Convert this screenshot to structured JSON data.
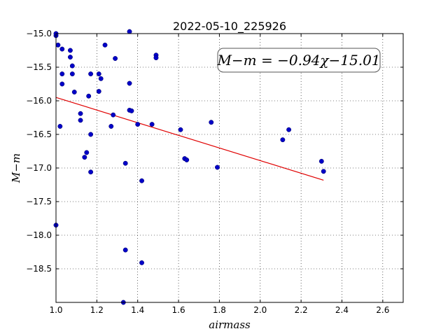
{
  "chart_data": {
    "type": "scatter",
    "title": "2022-05-10_225926",
    "xlabel": "airmass",
    "ylabel": "M−m",
    "xlim": [
      1.0,
      2.7
    ],
    "ylim": [
      -19.0,
      -15.0
    ],
    "y_inverted": true,
    "x_ticks": [
      "1.0",
      "1.2",
      "1.4",
      "1.6",
      "1.8",
      "2.0",
      "2.2",
      "2.4",
      "2.6"
    ],
    "y_ticks": [
      "−15.0",
      "−15.5",
      "−16.0",
      "−16.5",
      "−17.0",
      "−17.5",
      "−18.0",
      "−18.5"
    ],
    "grid": true,
    "annotation": "M−m = −0.94χ−15.01",
    "fit": {
      "slope": -0.94,
      "intercept": -15.01,
      "x_range": [
        1.0,
        2.31
      ],
      "color": "#e00000"
    },
    "point_color": "#0000c8",
    "points": [
      {
        "x": 1.0,
        "y": -15.03
      },
      {
        "x": 1.0,
        "y": -15.0
      },
      {
        "x": 1.01,
        "y": -15.17
      },
      {
        "x": 1.03,
        "y": -15.23
      },
      {
        "x": 1.07,
        "y": -15.25
      },
      {
        "x": 1.07,
        "y": -15.35
      },
      {
        "x": 1.08,
        "y": -15.48
      },
      {
        "x": 1.03,
        "y": -15.6
      },
      {
        "x": 1.08,
        "y": -15.6
      },
      {
        "x": 1.03,
        "y": -15.75
      },
      {
        "x": 1.09,
        "y": -15.87
      },
      {
        "x": 1.17,
        "y": -15.6
      },
      {
        "x": 1.21,
        "y": -15.6
      },
      {
        "x": 1.22,
        "y": -15.67
      },
      {
        "x": 1.24,
        "y": -15.17
      },
      {
        "x": 1.29,
        "y": -15.37
      },
      {
        "x": 1.36,
        "y": -14.97
      },
      {
        "x": 1.49,
        "y": -15.32
      },
      {
        "x": 1.49,
        "y": -15.36
      },
      {
        "x": 1.36,
        "y": -15.74
      },
      {
        "x": 1.21,
        "y": -15.86
      },
      {
        "x": 1.16,
        "y": -15.93
      },
      {
        "x": 1.12,
        "y": -16.19
      },
      {
        "x": 1.12,
        "y": -16.29
      },
      {
        "x": 1.02,
        "y": -16.38
      },
      {
        "x": 1.36,
        "y": -16.14
      },
      {
        "x": 1.37,
        "y": -16.15
      },
      {
        "x": 1.28,
        "y": -16.21
      },
      {
        "x": 1.27,
        "y": -16.38
      },
      {
        "x": 1.4,
        "y": -16.35
      },
      {
        "x": 1.47,
        "y": -16.35
      },
      {
        "x": 1.17,
        "y": -16.5
      },
      {
        "x": 1.15,
        "y": -16.77
      },
      {
        "x": 1.14,
        "y": -16.84
      },
      {
        "x": 1.34,
        "y": -16.93
      },
      {
        "x": 1.17,
        "y": -17.06
      },
      {
        "x": 1.42,
        "y": -17.19
      },
      {
        "x": 1.61,
        "y": -16.43
      },
      {
        "x": 1.76,
        "y": -16.32
      },
      {
        "x": 1.63,
        "y": -16.86
      },
      {
        "x": 1.64,
        "y": -16.88
      },
      {
        "x": 1.79,
        "y": -16.99
      },
      {
        "x": 2.11,
        "y": -16.58
      },
      {
        "x": 2.14,
        "y": -16.43
      },
      {
        "x": 2.3,
        "y": -16.9
      },
      {
        "x": 2.31,
        "y": -17.05
      },
      {
        "x": 1.0,
        "y": -17.85
      },
      {
        "x": 1.34,
        "y": -18.22
      },
      {
        "x": 1.42,
        "y": -18.41
      },
      {
        "x": 1.33,
        "y": -19.0
      }
    ]
  }
}
